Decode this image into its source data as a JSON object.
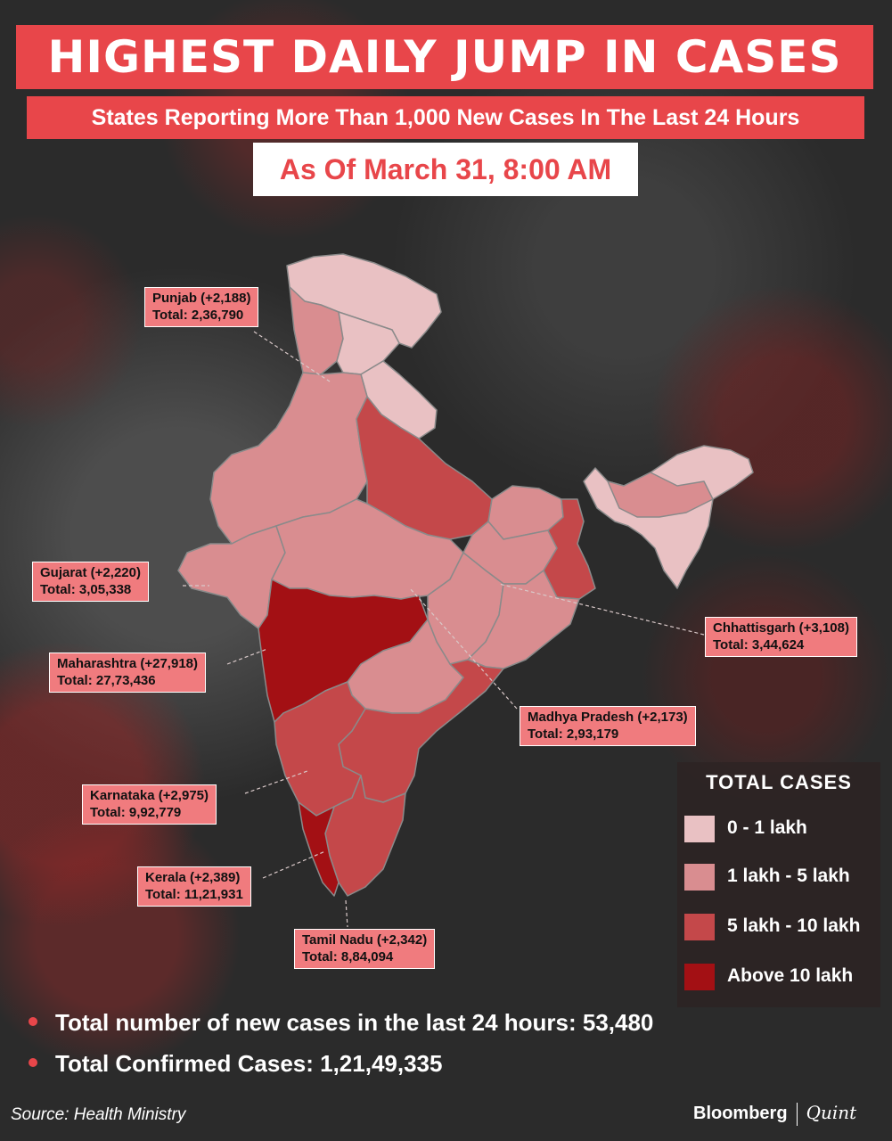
{
  "header": {
    "title": "HIGHEST DAILY JUMP IN CASES",
    "subtitle": "States Reporting More Than 1,000 New Cases In The Last 24 Hours",
    "date": "As Of March 31, 8:00 AM"
  },
  "colors": {
    "accent": "#e8464a",
    "callout": "#f07b7e",
    "c0": "#e9c1c3",
    "c1": "#d98d90",
    "c2": "#c4484a",
    "c3": "#a31014"
  },
  "callouts": [
    {
      "state": "Punjab (+2,188)",
      "total": "Total: 2,36,790"
    },
    {
      "state": "Gujarat (+2,220)",
      "total": "Total: 3,05,338"
    },
    {
      "state": "Maharashtra (+27,918)",
      "total": "Total: 27,73,436"
    },
    {
      "state": "Karnataka (+2,975)",
      "total": "Total: 9,92,779"
    },
    {
      "state": "Kerala (+2,389)",
      "total": "Total: 11,21,931"
    },
    {
      "state": "Tamil Nadu (+2,342)",
      "total": "Total: 8,84,094"
    },
    {
      "state": "Chhattisgarh (+3,108)",
      "total": "Total: 3,44,624"
    },
    {
      "state": "Madhya Pradesh (+2,173)",
      "total": "Total: 2,93,179"
    }
  ],
  "legend": {
    "title": "TOTAL  CASES",
    "items": [
      {
        "label": "0 - 1 lakh",
        "color": "#e9c1c3"
      },
      {
        "label": "1 lakh - 5 lakh",
        "color": "#d98d90"
      },
      {
        "label": "5 lakh - 10 lakh",
        "color": "#c4484a"
      },
      {
        "label": "Above 10 lakh",
        "color": "#a31014"
      }
    ]
  },
  "stats": {
    "new_cases": "Total number of new cases in the last 24 hours: 53,480",
    "confirmed": "Total Confirmed Cases: 1,21,49,335"
  },
  "footer": {
    "source": "Source: Health Ministry",
    "brand1": "Bloomberg",
    "brand2": "Quint"
  }
}
